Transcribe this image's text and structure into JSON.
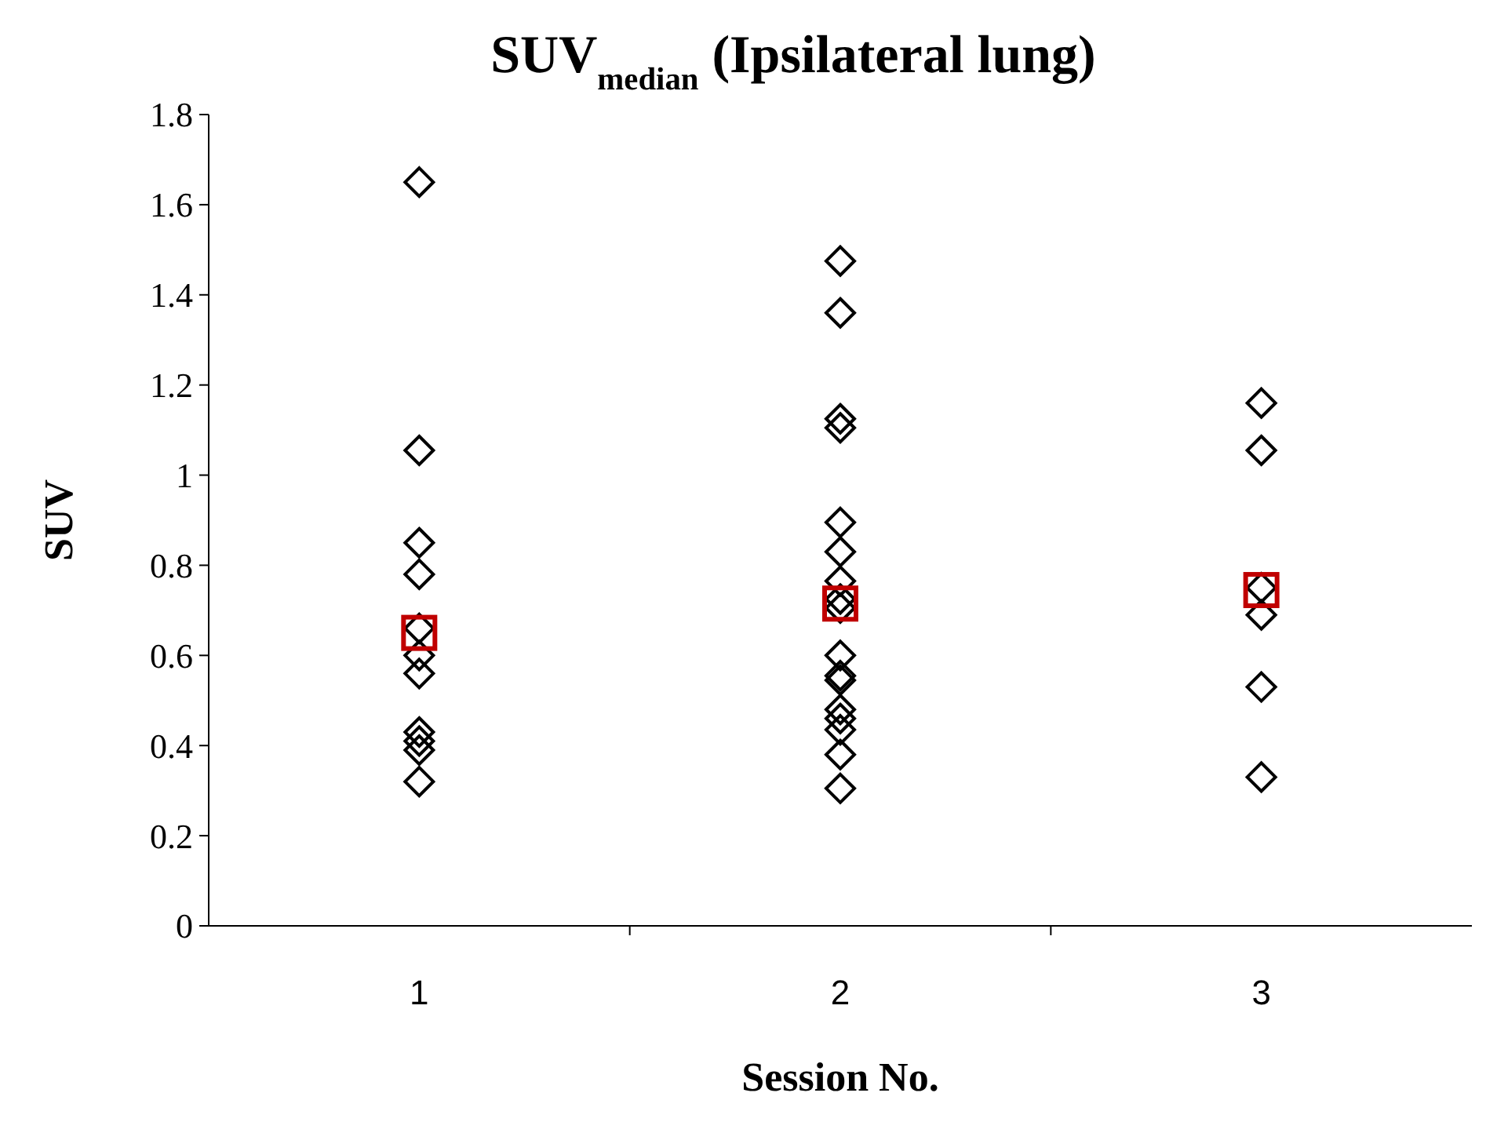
{
  "chart_data": {
    "type": "scatter",
    "title": "SUV$_{median}$ (Ipsilateral lung)",
    "xlabel": "Session No.",
    "ylabel": "SUV",
    "categories": [
      "1",
      "2",
      "3"
    ],
    "ylim": [
      0,
      1.8
    ],
    "yticks": [
      0,
      0.2,
      0.4,
      0.6,
      0.8,
      1,
      1.2,
      1.4,
      1.6,
      1.8
    ],
    "grid": false,
    "series": [
      {
        "color": "#000000",
        "marker": "diamond",
        "x": [
          "1",
          "1",
          "1",
          "1",
          "1",
          "1",
          "1",
          "1",
          "1",
          "1",
          "1",
          "2",
          "2",
          "2",
          "2",
          "2",
          "2",
          "2",
          "2",
          "2",
          "2",
          "2",
          "2",
          "2",
          "2",
          "2",
          "2",
          "2",
          "3",
          "3",
          "3",
          "3",
          "3",
          "3"
        ],
        "values": [
          1.65,
          1.055,
          0.85,
          0.78,
          0.66,
          0.6,
          0.56,
          0.43,
          0.41,
          0.39,
          0.32,
          1.475,
          1.36,
          1.125,
          1.105,
          0.895,
          0.83,
          0.765,
          0.725,
          0.705,
          0.6,
          0.555,
          0.545,
          0.48,
          0.46,
          0.435,
          0.38,
          0.305,
          1.16,
          1.055,
          0.75,
          0.69,
          0.53,
          0.33
        ]
      },
      {
        "color": "#c00000",
        "marker": "square",
        "x": [
          "1",
          "2",
          "3"
        ],
        "values": [
          0.65,
          0.715,
          0.745
        ]
      }
    ]
  }
}
